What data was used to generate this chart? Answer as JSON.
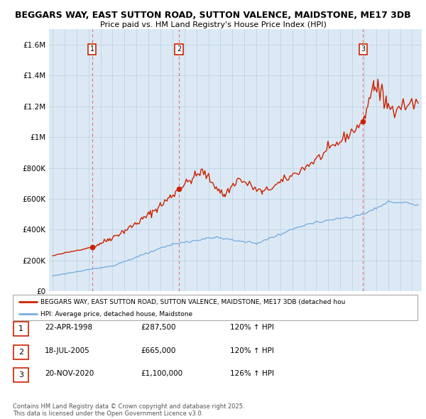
{
  "title_line1": "BEGGARS WAY, EAST SUTTON ROAD, SUTTON VALENCE, MAIDSTONE, ME17 3DB",
  "title_line2": "Price paid vs. HM Land Registry's House Price Index (HPI)",
  "background_color": "#ffffff",
  "plot_bg_color": "#dce9f5",
  "grid_color": "#b8cfe0",
  "red_line_color": "#cc2200",
  "blue_line_color": "#7aafe0",
  "vline_color": "#dd6666",
  "sale_points": [
    {
      "date_num": 1998.31,
      "value": 287500,
      "label": "1"
    },
    {
      "date_num": 2005.54,
      "value": 665000,
      "label": "2"
    },
    {
      "date_num": 2020.9,
      "value": 1100000,
      "label": "3"
    }
  ],
  "ylim": [
    0,
    1700000
  ],
  "yticks": [
    0,
    200000,
    400000,
    600000,
    800000,
    1000000,
    1200000,
    1400000,
    1600000
  ],
  "ytick_labels": [
    "£0",
    "£200K",
    "£400K",
    "£600K",
    "£800K",
    "£1M",
    "£1.2M",
    "£1.4M",
    "£1.6M"
  ],
  "xlim_start": 1994.7,
  "xlim_end": 2025.8,
  "legend_label_red": "BEGGARS WAY, EAST SUTTON ROAD, SUTTON VALENCE, MAIDSTONE, ME17 3DB (detached hou",
  "legend_label_blue": "HPI: Average price, detached house, Maidstone",
  "table_rows": [
    {
      "num": "1",
      "date": "22-APR-1998",
      "price": "£287,500",
      "hpi": "120% ↑ HPI"
    },
    {
      "num": "2",
      "date": "18-JUL-2005",
      "price": "£665,000",
      "hpi": "120% ↑ HPI"
    },
    {
      "num": "3",
      "date": "20-NOV-2020",
      "price": "£1,100,000",
      "hpi": "126% ↑ HPI"
    }
  ],
  "footer": "Contains HM Land Registry data © Crown copyright and database right 2025.\nThis data is licensed under the Open Government Licence v3.0."
}
